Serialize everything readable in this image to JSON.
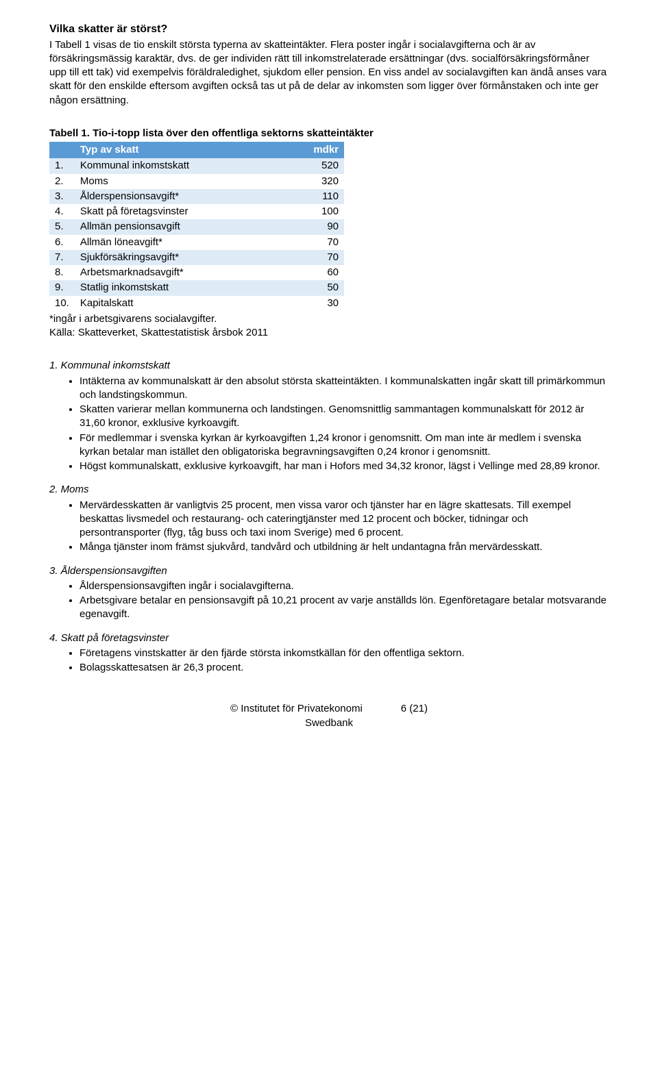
{
  "title": "Vilka skatter är störst?",
  "intro": "I Tabell 1 visas de tio enskilt största typerna av skatteintäkter. Flera poster ingår i socialavgifterna och är av försäkringsmässig karaktär, dvs. de ger individen rätt till inkomstrelaterade ersättningar (dvs. socialförsäkringsförmåner upp till ett tak) vid exempelvis föräldraledighet, sjukdom eller pension. En viss andel av socialavgiften kan ändå anses vara skatt för den enskilde eftersom avgiften också tas ut på de delar av inkomsten som ligger över förmånstaken och inte ger någon ersättning.",
  "table": {
    "caption": "Tabell 1. Tio-i-topp lista över den offentliga sektorns skatteintäkter",
    "header_bg": "#5b9bd5",
    "header_fg": "#ffffff",
    "row_odd_bg": "#deebf7",
    "row_even_bg": "#ffffff",
    "columns": [
      "",
      "Typ av skatt",
      "mdkr"
    ],
    "rows": [
      [
        "1.",
        "Kommunal inkomstskatt",
        "520"
      ],
      [
        "2.",
        "Moms",
        "320"
      ],
      [
        "3.",
        "Ålderspensionsavgift*",
        "110"
      ],
      [
        "4.",
        "Skatt på företagsvinster",
        "100"
      ],
      [
        "5.",
        "Allmän pensionsavgift",
        "90"
      ],
      [
        "6.",
        "Allmän löneavgift*",
        "70"
      ],
      [
        "7.",
        "Sjukförsäkringsavgift*",
        "70"
      ],
      [
        "8.",
        "Arbetsmarknadsavgift*",
        "60"
      ],
      [
        "9.",
        "Statlig inkomstskatt",
        "50"
      ],
      [
        "10.",
        "Kapitalskatt",
        "30"
      ]
    ],
    "footnote1": "*ingår i arbetsgivarens socialavgifter.",
    "footnote2": "Källa: Skatteverket, Skattestatistisk årsbok 2011"
  },
  "items": [
    {
      "heading": "1. Kommunal inkomstskatt",
      "bullets": [
        "Intäkterna av kommunalskatt är den absolut största skatteintäkten. I kommunalskatten ingår skatt till primärkommun och landstingskommun.",
        "Skatten varierar mellan kommunerna och landstingen. Genomsnittlig sammantagen kommunalskatt för 2012 är 31,60 kronor, exklusive kyrkoavgift.",
        "För medlemmar i svenska kyrkan är kyrkoavgiften 1,24 kronor i genomsnitt. Om man inte är medlem i svenska kyrkan betalar man istället den obligatoriska begravningsavgiften 0,24 kronor i genomsnitt.",
        "Högst kommunalskatt, exklusive kyrkoavgift, har man i Hofors med 34,32 kronor, lägst i Vellinge med 28,89 kronor."
      ]
    },
    {
      "heading": "2. Moms",
      "bullets": [
        "Mervärdesskatten är vanligtvis 25 procent, men vissa varor och tjänster har en lägre skattesats. Till exempel beskattas livsmedel och restaurang- och cateringtjänster med 12 procent och böcker, tidningar och persontransporter (flyg, tåg buss och taxi inom Sverige) med 6 procent.",
        "Många tjänster inom främst sjukvård, tandvård och utbildning är helt undantagna från mervärdesskatt."
      ]
    },
    {
      "heading": "3. Ålderspensionsavgiften",
      "bullets": [
        "Ålderspensionsavgiften ingår i socialavgifterna.",
        " Arbetsgivare betalar en pensionsavgift på 10,21 procent av varje anställds lön. Egenföretagare betalar motsvarande egenavgift."
      ]
    },
    {
      "heading": "4. Skatt på företagsvinster",
      "bullets": [
        "Företagens vinstskatter är den fjärde största inkomstkällan för den offentliga sektorn.",
        "Bolagsskattesatsen är 26,3 procent."
      ]
    }
  ],
  "footer": {
    "left": "© Institutet för Privatekonomi",
    "left2": "Swedbank",
    "right": "6 (21)"
  }
}
